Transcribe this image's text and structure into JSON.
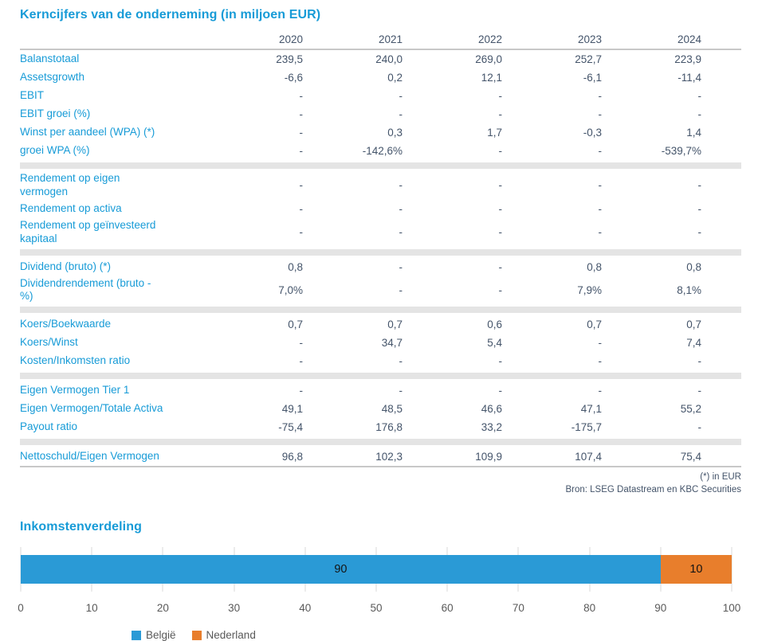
{
  "table": {
    "title": "Kerncijfers van de onderneming (in miljoen EUR)",
    "years": [
      "2020",
      "2021",
      "2022",
      "2023",
      "2024"
    ],
    "groups": [
      {
        "rows": [
          {
            "label": "Balanstotaal",
            "values": [
              "239,5",
              "240,0",
              "269,0",
              "252,7",
              "223,9"
            ]
          },
          {
            "label": "Assetsgrowth",
            "values": [
              "-6,6",
              "0,2",
              "12,1",
              "-6,1",
              "-11,4"
            ]
          },
          {
            "label": "EBIT",
            "values": [
              "-",
              "-",
              "-",
              "-",
              "-"
            ]
          },
          {
            "label": "EBIT groei (%)",
            "values": [
              "-",
              "-",
              "-",
              "-",
              "-"
            ]
          },
          {
            "label": "Winst per aandeel (WPA) (*)",
            "values": [
              "-",
              "0,3",
              "1,7",
              "-0,3",
              "1,4"
            ]
          },
          {
            "label": "groei WPA (%)",
            "values": [
              "-",
              "-142,6%",
              "-",
              "-",
              "-539,7%"
            ]
          }
        ]
      },
      {
        "rows": [
          {
            "label": [
              "Rendement op eigen",
              "vermogen"
            ],
            "values": [
              "-",
              "-",
              "-",
              "-",
              "-"
            ]
          },
          {
            "label": "Rendement op activa",
            "values": [
              "-",
              "-",
              "-",
              "-",
              "-"
            ]
          },
          {
            "label": [
              "Rendement op geïnvesteerd",
              "kapitaal"
            ],
            "values": [
              "-",
              "-",
              "-",
              "-",
              "-"
            ]
          }
        ]
      },
      {
        "rows": [
          {
            "label": "Dividend (bruto) (*)",
            "values": [
              "0,8",
              "-",
              "-",
              "0,8",
              "0,8"
            ]
          },
          {
            "label": [
              "Dividendrendement (bruto -",
              "%)"
            ],
            "values": [
              "7,0%",
              "-",
              "-",
              "7,9%",
              "8,1%"
            ]
          }
        ]
      },
      {
        "rows": [
          {
            "label": "Koers/Boekwaarde",
            "values": [
              "0,7",
              "0,7",
              "0,6",
              "0,7",
              "0,7"
            ]
          },
          {
            "label": "Koers/Winst",
            "values": [
              "-",
              "34,7",
              "5,4",
              "-",
              "7,4"
            ]
          },
          {
            "label": "Kosten/Inkomsten ratio",
            "values": [
              "-",
              "-",
              "-",
              "-",
              "-"
            ]
          }
        ]
      },
      {
        "rows": [
          {
            "label": "Eigen Vermogen Tier 1",
            "values": [
              "-",
              "-",
              "-",
              "-",
              "-"
            ]
          },
          {
            "label": "Eigen Vermogen/Totale Activa",
            "values": [
              "49,1",
              "48,5",
              "46,6",
              "47,1",
              "55,2"
            ]
          },
          {
            "label": "Payout ratio",
            "values": [
              "-75,4",
              "176,8",
              "33,2",
              "-175,7",
              "-"
            ]
          }
        ]
      },
      {
        "rows": [
          {
            "label": "Nettoschuld/Eigen Vermogen",
            "values": [
              "96,8",
              "102,3",
              "109,9",
              "107,4",
              "75,4"
            ]
          }
        ]
      }
    ],
    "footnote_unit": "(*) in EUR",
    "footnote_source": "Bron: LSEG Datastream en KBC Securities"
  },
  "chart": {
    "title": "Inkomstenverdeling"
  },
  "chart_data": {
    "type": "bar",
    "orientation": "horizontal",
    "stacked": true,
    "title": "Inkomstenverdeling",
    "xlabel": "",
    "ylabel": "",
    "xlim": [
      0,
      100
    ],
    "tick_step": 10,
    "grid": true,
    "legend_position": "bottom",
    "series": [
      {
        "name": "België",
        "value": 90,
        "color": "#2A9AD6"
      },
      {
        "name": "Nederland",
        "value": 10,
        "color": "#E87E2C"
      }
    ]
  },
  "colors": {
    "accent_blue": "#179BD7",
    "value_text": "#44546A",
    "separator_band": "#E4E4E4",
    "header_rule": "#C8C8C8",
    "chart_blue": "#2A9AD6",
    "chart_orange": "#E87E2C",
    "gridline": "#D9D9D9",
    "axis_text": "#595959"
  }
}
